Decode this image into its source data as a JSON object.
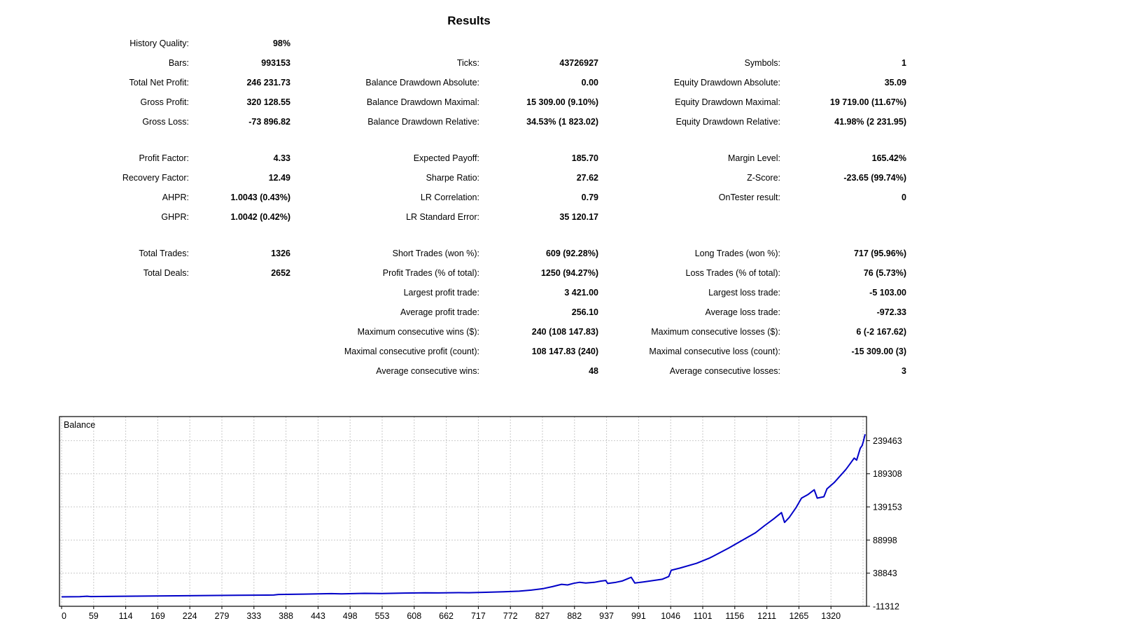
{
  "title": "Results",
  "stats": {
    "blocks": [
      [
        [
          "History Quality:",
          "98%",
          "",
          "",
          "",
          ""
        ],
        [
          "Bars:",
          "993153",
          "Ticks:",
          "43726927",
          "Symbols:",
          "1"
        ],
        [
          "Total Net Profit:",
          "246 231.73",
          "Balance Drawdown Absolute:",
          "0.00",
          "Equity Drawdown Absolute:",
          "35.09"
        ],
        [
          "Gross Profit:",
          "320 128.55",
          "Balance Drawdown Maximal:",
          "15 309.00 (9.10%)",
          "Equity Drawdown Maximal:",
          "19 719.00 (11.67%)"
        ],
        [
          "Gross Loss:",
          "-73 896.82",
          "Balance Drawdown Relative:",
          "34.53% (1 823.02)",
          "Equity Drawdown Relative:",
          "41.98% (2 231.95)"
        ]
      ],
      [
        [
          "Profit Factor:",
          "4.33",
          "Expected Payoff:",
          "185.70",
          "Margin Level:",
          "165.42%"
        ],
        [
          "Recovery Factor:",
          "12.49",
          "Sharpe Ratio:",
          "27.62",
          "Z-Score:",
          "-23.65 (99.74%)"
        ],
        [
          "AHPR:",
          "1.0043 (0.43%)",
          "LR Correlation:",
          "0.79",
          "OnTester result:",
          "0"
        ],
        [
          "GHPR:",
          "1.0042 (0.42%)",
          "LR Standard Error:",
          "35 120.17",
          "",
          ""
        ]
      ],
      [
        [
          "Total Trades:",
          "1326",
          "Short Trades (won %):",
          "609 (92.28%)",
          "Long Trades (won %):",
          "717 (95.96%)"
        ],
        [
          "Total Deals:",
          "2652",
          "Profit Trades (% of total):",
          "1250 (94.27%)",
          "Loss Trades (% of total):",
          "76 (5.73%)"
        ],
        [
          "",
          "",
          "Largest profit trade:",
          "3 421.00",
          "Largest loss trade:",
          "-5 103.00"
        ],
        [
          "",
          "",
          "Average profit trade:",
          "256.10",
          "Average loss trade:",
          "-972.33"
        ],
        [
          "",
          "",
          "Maximum consecutive wins ($):",
          "240 (108 147.83)",
          "Maximum consecutive losses ($):",
          "6 (-2 167.62)"
        ],
        [
          "",
          "",
          "Maximal consecutive profit (count):",
          "108 147.83 (240)",
          "Maximal consecutive loss (count):",
          "-15 309.00 (3)"
        ],
        [
          "",
          "",
          "Average consecutive wins:",
          "48",
          "Average consecutive losses:",
          "3"
        ]
      ]
    ]
  },
  "chart_data": {
    "type": "line",
    "title": "Balance",
    "legend_position": "top-left-inside",
    "grid": "dashed",
    "x_ticks": [
      0,
      59,
      114,
      169,
      224,
      279,
      333,
      388,
      443,
      498,
      553,
      608,
      662,
      717,
      772,
      827,
      882,
      937,
      991,
      1046,
      1101,
      1156,
      1211,
      1265,
      1320
    ],
    "y_ticks": [
      239463,
      189308,
      139153,
      88998,
      38843,
      -11312
    ],
    "axis": {
      "ymin": -11312,
      "ymax": 275900,
      "x_data_max": 1326
    },
    "colors": {
      "line": "#0000C8",
      "grid": "#C9C9C9",
      "border": "#000000",
      "background": "#FFFFFF"
    },
    "series": [
      {
        "name": "Balance",
        "points": [
          [
            0,
            3000
          ],
          [
            30,
            3300
          ],
          [
            42,
            3900
          ],
          [
            48,
            3400
          ],
          [
            90,
            3700
          ],
          [
            140,
            4200
          ],
          [
            190,
            4600
          ],
          [
            240,
            5000
          ],
          [
            290,
            5300
          ],
          [
            340,
            5600
          ],
          [
            350,
            5700
          ],
          [
            358,
            6600
          ],
          [
            400,
            7100
          ],
          [
            445,
            7900
          ],
          [
            462,
            7500
          ],
          [
            500,
            8300
          ],
          [
            528,
            8000
          ],
          [
            565,
            8700
          ],
          [
            600,
            9100
          ],
          [
            622,
            8900
          ],
          [
            655,
            9400
          ],
          [
            672,
            9200
          ],
          [
            700,
            9900
          ],
          [
            730,
            10700
          ],
          [
            755,
            11600
          ],
          [
            775,
            13200
          ],
          [
            795,
            15500
          ],
          [
            810,
            18500
          ],
          [
            825,
            22000
          ],
          [
            835,
            21000
          ],
          [
            845,
            23500
          ],
          [
            855,
            25000
          ],
          [
            865,
            24000
          ],
          [
            879,
            24900
          ],
          [
            890,
            26800
          ],
          [
            898,
            27800
          ],
          [
            901,
            23200
          ],
          [
            915,
            25000
          ],
          [
            925,
            27000
          ],
          [
            936,
            31200
          ],
          [
            940,
            32700
          ],
          [
            946,
            23900
          ],
          [
            960,
            25500
          ],
          [
            975,
            27500
          ],
          [
            991,
            29600
          ],
          [
            1002,
            33800
          ],
          [
            1006,
            43300
          ],
          [
            1020,
            46500
          ],
          [
            1048,
            53800
          ],
          [
            1070,
            62000
          ],
          [
            1101,
            77000
          ],
          [
            1124,
            89000
          ],
          [
            1145,
            100000
          ],
          [
            1159,
            110000
          ],
          [
            1175,
            121000
          ],
          [
            1188,
            130500
          ],
          [
            1193,
            115700
          ],
          [
            1201,
            123500
          ],
          [
            1212,
            138000
          ],
          [
            1221,
            152400
          ],
          [
            1232,
            158000
          ],
          [
            1242,
            165000
          ],
          [
            1247,
            152400
          ],
          [
            1258,
            154500
          ],
          [
            1263,
            166400
          ],
          [
            1275,
            176000
          ],
          [
            1294,
            195600
          ],
          [
            1300,
            203000
          ],
          [
            1308,
            213000
          ],
          [
            1312,
            210000
          ],
          [
            1318,
            228000
          ],
          [
            1321,
            232000
          ],
          [
            1323,
            238000
          ],
          [
            1326,
            249232
          ]
        ]
      }
    ]
  }
}
